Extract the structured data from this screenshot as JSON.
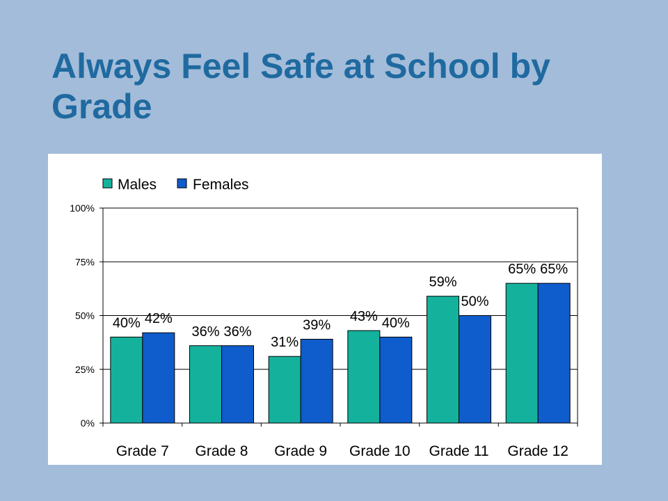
{
  "title": "Always Feel Safe at School by Grade",
  "colors": {
    "background": "#a3bcd9",
    "title": "#1f6aa0",
    "males": "#14b29c",
    "females": "#0f5ccc"
  },
  "chart_data": {
    "type": "bar",
    "title": "",
    "xlabel": "",
    "ylabel": "",
    "ylim": [
      0,
      100
    ],
    "yticks": [
      0,
      25,
      50,
      75,
      100
    ],
    "ytick_labels": [
      "0%",
      "25%",
      "50%",
      "75%",
      "100%"
    ],
    "grid": true,
    "legend": "top-left",
    "categories": [
      "Grade 7",
      "Grade 8",
      "Grade 9",
      "Grade 10",
      "Grade 11",
      "Grade 12"
    ],
    "series": [
      {
        "name": "Males",
        "color": "#14b29c",
        "values": [
          40,
          36,
          31,
          43,
          59,
          65
        ],
        "labels": [
          "40%",
          "36%",
          "31%",
          "43%",
          "59%",
          "65%"
        ]
      },
      {
        "name": "Females",
        "color": "#0f5ccc",
        "values": [
          42,
          36,
          39,
          40,
          50,
          65
        ],
        "labels": [
          "42%",
          "36%",
          "39%",
          "40%",
          "50%",
          "65%"
        ]
      }
    ]
  }
}
